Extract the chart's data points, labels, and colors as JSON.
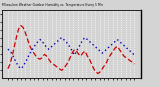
{
  "title": "Milwaukee Weather Outdoor Humidity vs. Temperature Every 5 Min",
  "bg_color": "#d4d4d4",
  "plot_bg": "#d4d4d4",
  "grid_color": "#ffffff",
  "red_color": "#cc0000",
  "blue_color": "#0000bb",
  "right_axis_color": "#000000",
  "temp_yticks": [
    20,
    30,
    40,
    50,
    60,
    70,
    80,
    90
  ],
  "temp_ylim": [
    10,
    95
  ],
  "humid_ylim": [
    30,
    100
  ],
  "temp_data": [
    22,
    28,
    38,
    50,
    62,
    72,
    76,
    74,
    68,
    60,
    52,
    46,
    42,
    38,
    35,
    34,
    36,
    40,
    38,
    34,
    30,
    28,
    26,
    24,
    22,
    20,
    22,
    26,
    30,
    36,
    42,
    46,
    44,
    40,
    38,
    42,
    44,
    38,
    34,
    28,
    22,
    18,
    16,
    18,
    22,
    26,
    30,
    36,
    40,
    44,
    48,
    50,
    46,
    42,
    38,
    36,
    34,
    32,
    30,
    28
  ],
  "humid_data": [
    60,
    58,
    55,
    50,
    46,
    42,
    40,
    42,
    46,
    50,
    55,
    58,
    62,
    65,
    68,
    70,
    68,
    65,
    62,
    60,
    62,
    64,
    66,
    68,
    70,
    72,
    70,
    68,
    65,
    62,
    58,
    54,
    58,
    62,
    66,
    70,
    72,
    70,
    68,
    66,
    64,
    62,
    60,
    58,
    56,
    58,
    60,
    62,
    64,
    66,
    68,
    70,
    68,
    66,
    64,
    62,
    60,
    58,
    56,
    54
  ],
  "n_xticks": 30,
  "figsize": [
    1.6,
    0.87
  ],
  "dpi": 100
}
